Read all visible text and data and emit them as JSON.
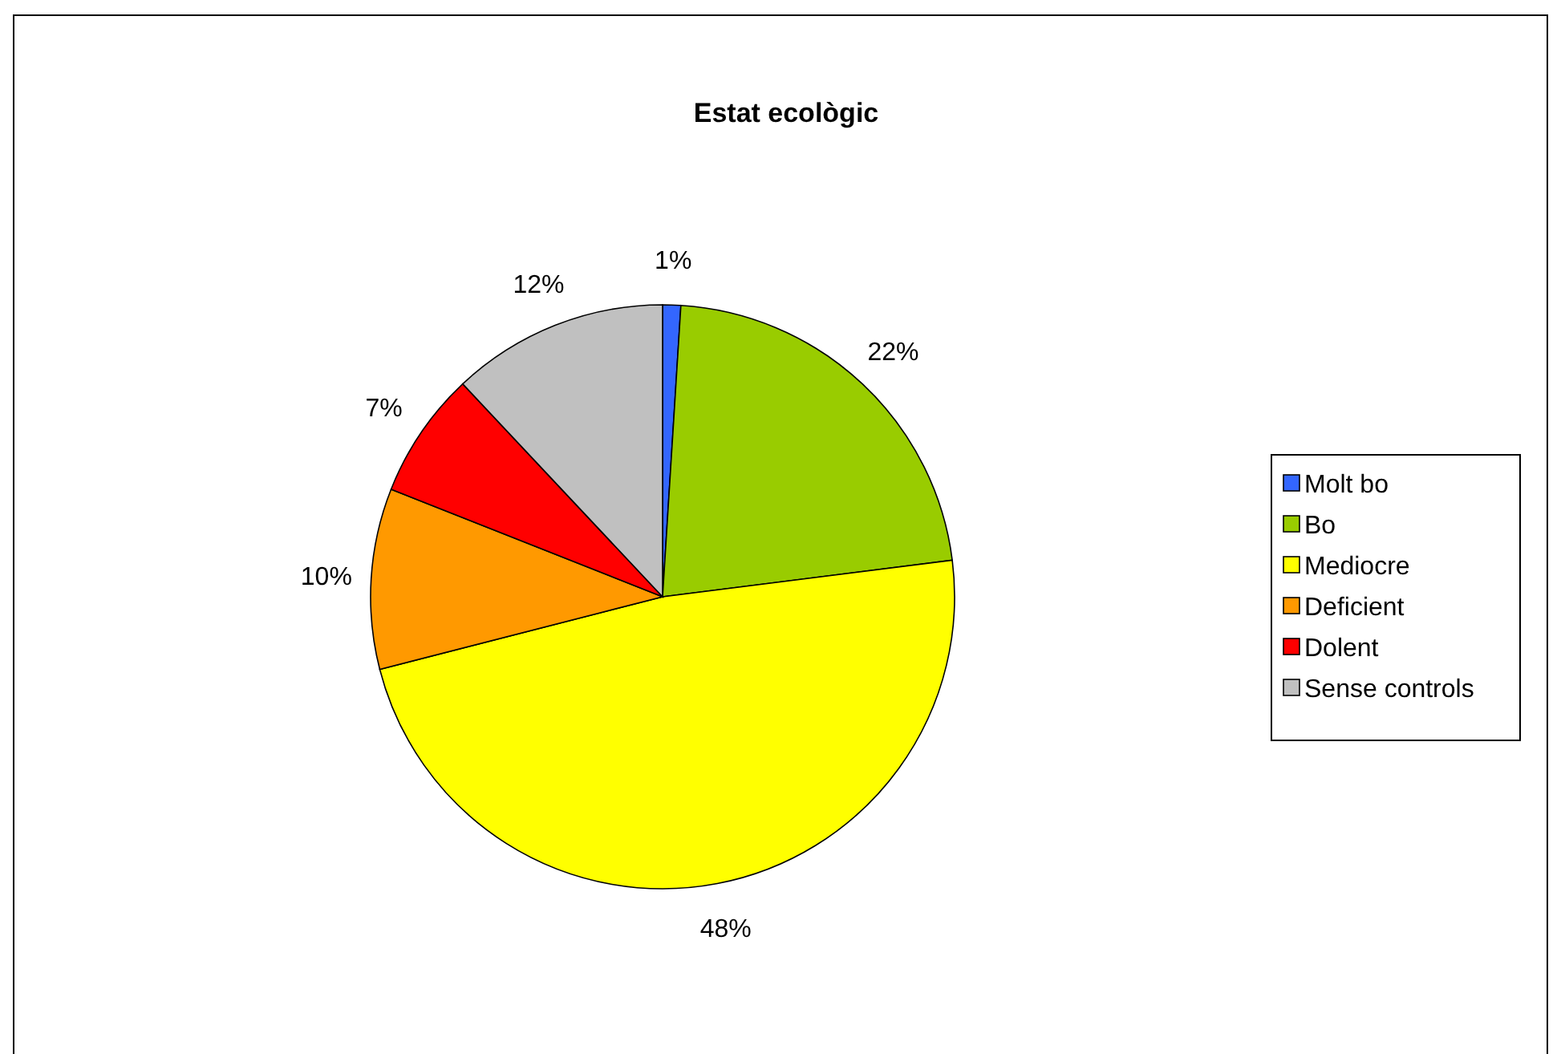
{
  "chart_data": {
    "type": "pie",
    "title": "Estat ecològic",
    "categories": [
      "Molt bo",
      "Bo",
      "Mediocre",
      "Deficient",
      "Dolent",
      "Sense controls"
    ],
    "values": [
      1,
      22,
      48,
      10,
      7,
      12
    ],
    "colors": [
      "#3366ff",
      "#99cc00",
      "#ffff00",
      "#ff9900",
      "#ff0000",
      "#c0c0c0"
    ],
    "value_labels": [
      "1%",
      "22%",
      "48%",
      "10%",
      "7%",
      "12%"
    ],
    "legend": "right"
  }
}
